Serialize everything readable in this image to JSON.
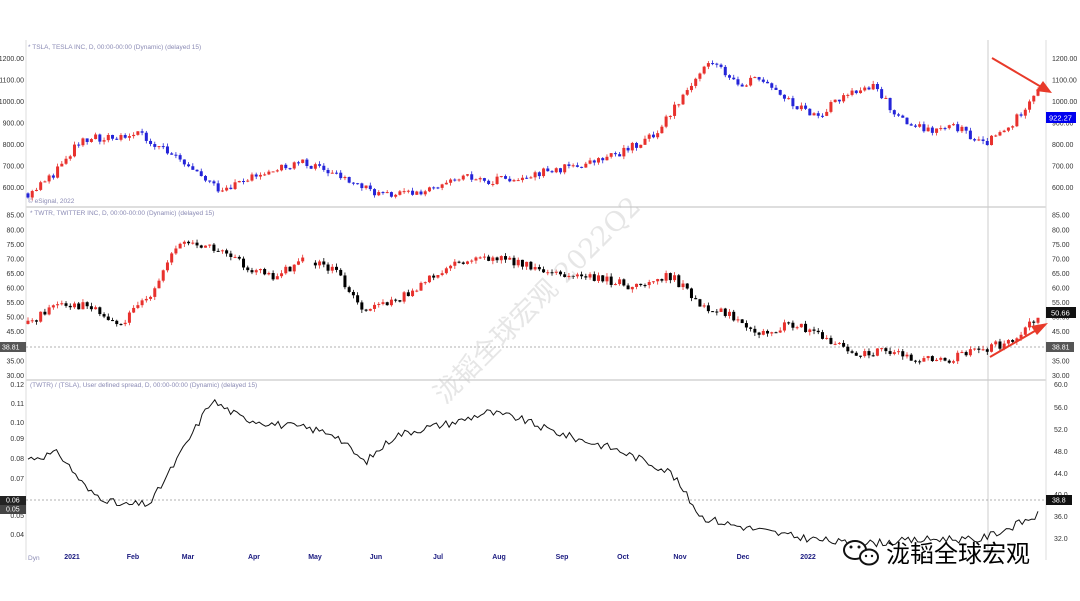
{
  "panels": {
    "top_header": "* TSLA, TESLA INC, D, 00:00-00:00 (Dynamic) (delayed 15)",
    "top_source": "© eSignal, 2022",
    "mid_header": "* TWTR, TWITTER INC, D, 00:00-00:00 (Dynamic) (delayed 15)",
    "bot_header": "(TWTR) / (TSLA), User defined spread, D, 00:00-00:00 (Dynamic) (delayed 15)",
    "bot_corner": "Dyn"
  },
  "axes": {
    "top_ticks": [
      "1200.00",
      "1100.00",
      "1000.00",
      "900.00",
      "800.00",
      "700.00",
      "600.00"
    ],
    "top_ticks_right": [
      "1200.00",
      "1100.00",
      "1000.00",
      "900.00",
      "800.00",
      "700.00",
      "600.00"
    ],
    "mid_ticks": [
      "85.00",
      "80.00",
      "75.00",
      "70.00",
      "65.00",
      "60.00",
      "55.00",
      "50.00",
      "45.00",
      "35.00",
      "30.00"
    ],
    "mid_ticks_right": [
      "85.00",
      "80.00",
      "75.00",
      "70.00",
      "65.00",
      "60.00",
      "55.00",
      "50.00",
      "45.00",
      "35.00",
      "30.00"
    ],
    "bot_ticks_left": [
      "0.12",
      "0.11",
      "0.10",
      "0.09",
      "0.08",
      "0.07",
      "0.05",
      "0.04"
    ],
    "bot_ticks_right": [
      "60.0",
      "56.0",
      "52.0",
      "48.0",
      "44.0",
      "40.0",
      "36.0",
      "32.0"
    ],
    "months": [
      "2021",
      "Feb",
      "Mar",
      "Apr",
      "May",
      "Jun",
      "Jul",
      "Aug",
      "Sep",
      "Oct",
      "Nov",
      "Dec",
      "2022"
    ]
  },
  "badges": {
    "tsla_price": "922.27",
    "twtr_price": "50.66",
    "twtr_ref_left": "38.81",
    "twtr_ref_right": "38.81",
    "spread_left_a": "0.06",
    "spread_left_b": "0.05",
    "spread_right": "38.8"
  },
  "watermark": "泷韬全球宏观 2022Q2",
  "brand_text": "泷韬全球宏观",
  "colors": {
    "up": "#e8312d",
    "down": "#2424d8",
    "twtr_down": "#000000",
    "arrow": "#e83a2a",
    "price_badge": "#0000ee"
  },
  "chart_data": [
    {
      "type": "candlestick",
      "series_name": "TSLA",
      "ylim": [
        570,
        1250
      ],
      "x": [
        "2021-01",
        "2021-01",
        "2021-01",
        "2021-02",
        "2021-02",
        "2021-02",
        "2021-03",
        "2021-03",
        "2021-03",
        "2021-04",
        "2021-04",
        "2021-04",
        "2021-05",
        "2021-05",
        "2021-06",
        "2021-06",
        "2021-07",
        "2021-07",
        "2021-08",
        "2021-08",
        "2021-09",
        "2021-09",
        "2021-10",
        "2021-10",
        "2021-10",
        "2021-11",
        "2021-11",
        "2021-11",
        "2021-12",
        "2021-12",
        "2022-01",
        "2022-01",
        "2022-02",
        "2022-02",
        "2022-03",
        "2022-03",
        "2022-04",
        "2022-04"
      ],
      "values": [
        600,
        690,
        850,
        850,
        880,
        800,
        700,
        620,
        660,
        700,
        740,
        700,
        640,
        590,
        600,
        620,
        670,
        660,
        680,
        700,
        720,
        750,
        800,
        870,
        1050,
        1200,
        1100,
        1120,
        1000,
        950,
        1060,
        1080,
        930,
        880,
        900,
        820,
        900,
        1080
      ]
    },
    {
      "type": "candlestick",
      "series_name": "TWTR",
      "ylim": [
        28,
        86
      ],
      "x": [
        "2021-01",
        "2021-01",
        "2021-01",
        "2021-02",
        "2021-02",
        "2021-02",
        "2021-03",
        "2021-03",
        "2021-04",
        "2021-04",
        "2021-05",
        "2021-05",
        "2021-06",
        "2021-06",
        "2021-07",
        "2021-07",
        "2021-08",
        "2021-08",
        "2021-09",
        "2021-09",
        "2021-10",
        "2021-10",
        "2021-11",
        "2021-11",
        "2021-12",
        "2021-12",
        "2022-01",
        "2022-01",
        "2022-02",
        "2022-02",
        "2022-03",
        "2022-03",
        "2022-04",
        "2022-04"
      ],
      "values": [
        47,
        55,
        53,
        46,
        58,
        76,
        74,
        68,
        63,
        70,
        66,
        52,
        55,
        62,
        68,
        70,
        69,
        64,
        64,
        62,
        60,
        64,
        54,
        50,
        44,
        47,
        42,
        37,
        37,
        35,
        34,
        38,
        40,
        50
      ]
    },
    {
      "type": "line",
      "series_name": "TWTR/TSLA spread",
      "ylim": [
        0.035,
        0.12
      ],
      "x": [
        "2021-01",
        "2021-01",
        "2021-01",
        "2021-02",
        "2021-02",
        "2021-02",
        "2021-03",
        "2021-03",
        "2021-04",
        "2021-04",
        "2021-05",
        "2021-05",
        "2021-06",
        "2021-06",
        "2021-07",
        "2021-07",
        "2021-08",
        "2021-08",
        "2021-09",
        "2021-09",
        "2021-10",
        "2021-10",
        "2021-11",
        "2021-11",
        "2021-12",
        "2021-12",
        "2022-01",
        "2022-01",
        "2022-02",
        "2022-02",
        "2022-03",
        "2022-03",
        "2022-04",
        "2022-04"
      ],
      "values": [
        0.082,
        0.085,
        0.065,
        0.058,
        0.059,
        0.085,
        0.112,
        0.103,
        0.1,
        0.098,
        0.095,
        0.08,
        0.094,
        0.098,
        0.101,
        0.106,
        0.103,
        0.097,
        0.092,
        0.088,
        0.082,
        0.075,
        0.052,
        0.048,
        0.045,
        0.042,
        0.04,
        0.038,
        0.039,
        0.04,
        0.041,
        0.04,
        0.046,
        0.053
      ]
    }
  ]
}
